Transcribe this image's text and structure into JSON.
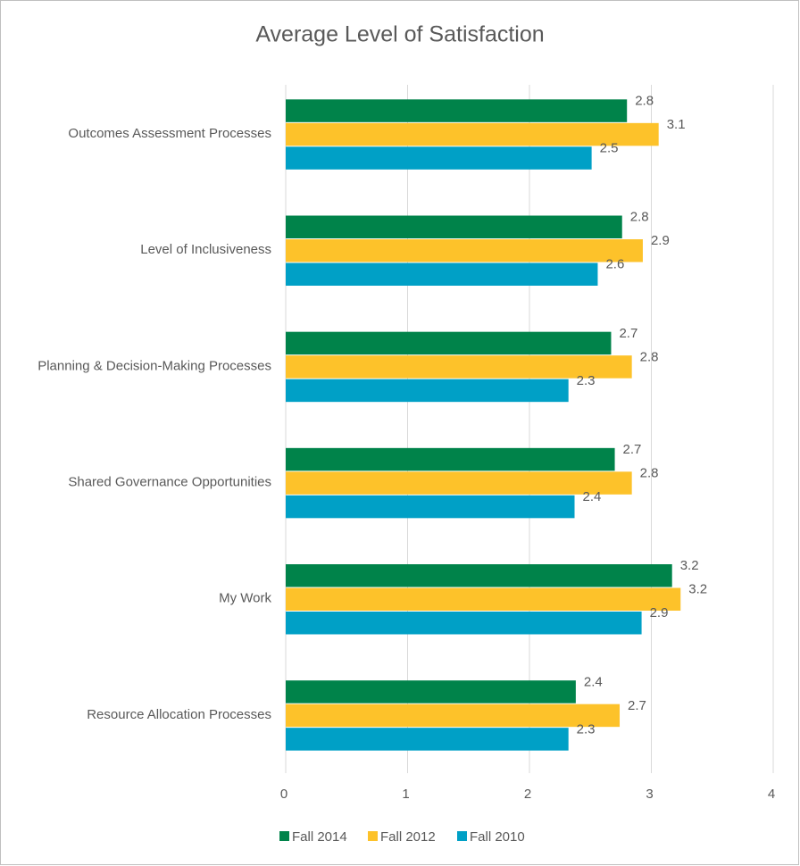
{
  "chart_data": {
    "type": "hbar",
    "title": "Average Level of Satisfaction",
    "categories": [
      "Outcomes Assessment Processes",
      "Level of Inclusiveness",
      "Planning & Decision-Making Processes",
      "Shared Governance Opportunities",
      "My Work",
      "Resource Allocation Processes"
    ],
    "series": [
      {
        "name": "Fall 2014",
        "color": "#00834a",
        "values": [
          2.8,
          2.76,
          2.67,
          2.7,
          3.17,
          2.38
        ],
        "value_labels": [
          "2.8",
          "2.8",
          "2.7",
          "2.7",
          "3.2",
          "2.4"
        ]
      },
      {
        "name": "Fall 2012",
        "color": "#fdc22a",
        "values": [
          3.06,
          2.93,
          2.84,
          2.84,
          3.24,
          2.74
        ],
        "value_labels": [
          "3.1",
          "2.9",
          "2.8",
          "2.8",
          "3.2",
          "2.7"
        ]
      },
      {
        "name": "Fall 2010",
        "color": "#00a0c6",
        "values": [
          2.51,
          2.56,
          2.32,
          2.37,
          2.92,
          2.32
        ],
        "value_labels": [
          "2.5",
          "2.6",
          "2.3",
          "2.4",
          "2.9",
          "2.3"
        ]
      }
    ],
    "xlim": [
      0,
      4
    ],
    "xticks": [
      0,
      1,
      2,
      3,
      4
    ],
    "grid": true,
    "legend": "bottom"
  }
}
